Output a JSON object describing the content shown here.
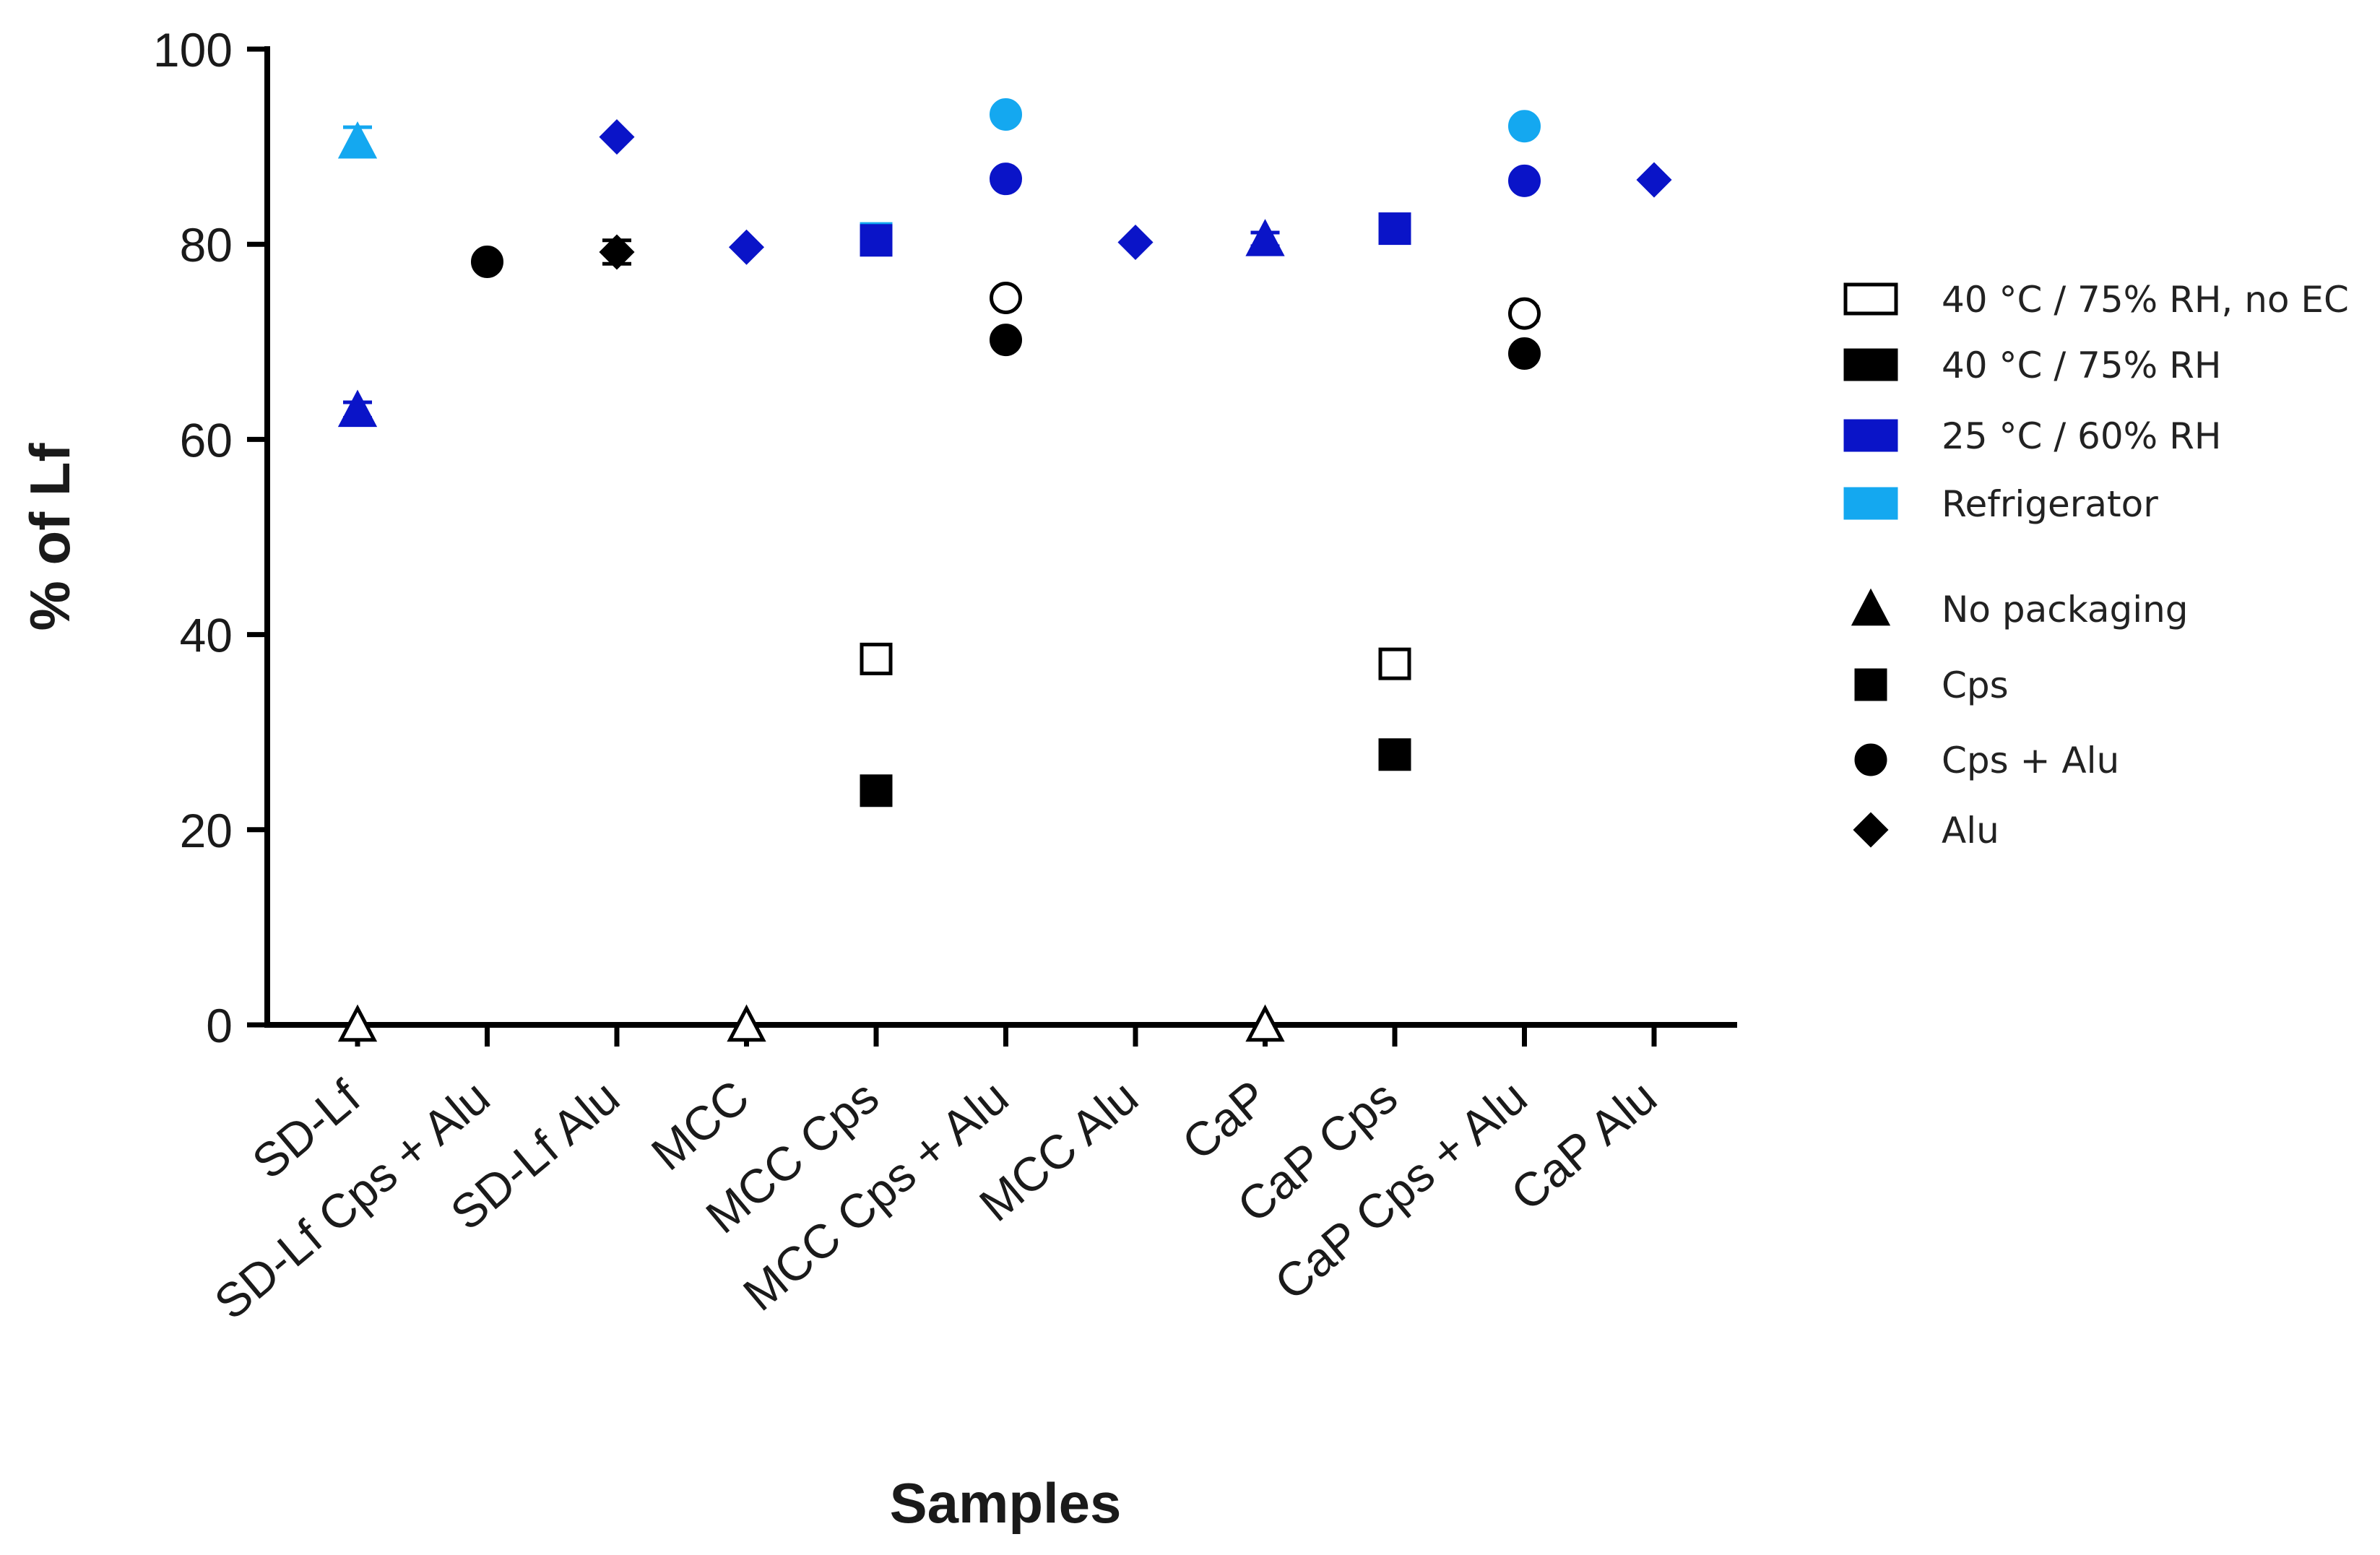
{
  "chart_data": {
    "type": "scatter",
    "title": "",
    "xlabel": "Samples",
    "ylabel": "% of Lf",
    "ylim": [
      0,
      100
    ],
    "yticks": [
      0,
      20,
      40,
      60,
      80,
      100
    ],
    "categories": [
      "SD-Lf",
      "SD-Lf Cps + Alu",
      "SD-Lf Alu",
      "MCC",
      "MCC Cps",
      "MCC Cps + Alu",
      "MCC Alu",
      "CaP",
      "CaP Cps",
      "CaP Cps + Alu",
      "CaP Alu"
    ],
    "conditions": [
      {
        "key": "no_ec",
        "name": "40 °C / 75% RH, no EC",
        "color": "#ffffff",
        "stroke": "#000000"
      },
      {
        "key": "c40",
        "name": "40 °C / 75% RH",
        "color": "#000000",
        "stroke": "#000000"
      },
      {
        "key": "c25",
        "name": "25 °C / 60% RH",
        "color": "#0a14c8",
        "stroke": "#0a14c8"
      },
      {
        "key": "fridge",
        "name": "Refrigerator",
        "color": "#14a8f0",
        "stroke": "#14a8f0"
      }
    ],
    "markers": [
      {
        "shape": "triangle",
        "name": "No packaging"
      },
      {
        "shape": "square",
        "name": "Cps"
      },
      {
        "shape": "circle",
        "name": "Cps + Alu"
      },
      {
        "shape": "diamond",
        "name": "Alu"
      }
    ],
    "points": [
      {
        "category": "SD-Lf",
        "condition": "fridge",
        "shape": "triangle",
        "y": 90.5,
        "err": 1.5
      },
      {
        "category": "SD-Lf",
        "condition": "c25",
        "shape": "triangle",
        "y": 63,
        "err": 0.8
      },
      {
        "category": "SD-Lf",
        "condition": "no_ec",
        "shape": "triangle",
        "y": 0
      },
      {
        "category": "SD-Lf Cps + Alu",
        "condition": "c40",
        "shape": "circle",
        "y": 78.2
      },
      {
        "category": "SD-Lf Alu",
        "condition": "c25",
        "shape": "diamond",
        "y": 91
      },
      {
        "category": "SD-Lf Alu",
        "condition": "c40",
        "shape": "diamond",
        "y": 79.2,
        "err": 1.2
      },
      {
        "category": "MCC",
        "condition": "c25",
        "shape": "diamond",
        "y": 79.7
      },
      {
        "category": "MCC",
        "condition": "no_ec",
        "shape": "triangle",
        "y": 0
      },
      {
        "category": "MCC Cps",
        "condition": "fridge",
        "shape": "square",
        "y": 80.6
      },
      {
        "category": "MCC Cps",
        "condition": "c25",
        "shape": "square",
        "y": 80.4
      },
      {
        "category": "MCC Cps",
        "condition": "no_ec",
        "shape": "square",
        "y": 37.5
      },
      {
        "category": "MCC Cps",
        "condition": "c40",
        "shape": "square",
        "y": 24
      },
      {
        "category": "MCC Cps + Alu",
        "condition": "fridge",
        "shape": "circle",
        "y": 93.3
      },
      {
        "category": "MCC Cps + Alu",
        "condition": "c25",
        "shape": "circle",
        "y": 86.7
      },
      {
        "category": "MCC Cps + Alu",
        "condition": "no_ec",
        "shape": "circle",
        "y": 74.5
      },
      {
        "category": "MCC Cps + Alu",
        "condition": "c40",
        "shape": "circle",
        "y": 70.2
      },
      {
        "category": "MCC Alu",
        "condition": "c25",
        "shape": "diamond",
        "y": 80.2
      },
      {
        "category": "CaP",
        "condition": "c25",
        "shape": "triangle",
        "y": 80.5,
        "err": 0.7
      },
      {
        "category": "CaP",
        "condition": "no_ec",
        "shape": "triangle",
        "y": 0
      },
      {
        "category": "CaP Cps",
        "condition": "c25",
        "shape": "square",
        "y": 81.6
      },
      {
        "category": "CaP Cps",
        "condition": "no_ec",
        "shape": "square",
        "y": 37,
        "err": 0.7
      },
      {
        "category": "CaP Cps",
        "condition": "c40",
        "shape": "square",
        "y": 27.7
      },
      {
        "category": "CaP Cps + Alu",
        "condition": "fridge",
        "shape": "circle",
        "y": 92.1
      },
      {
        "category": "CaP Cps + Alu",
        "condition": "c25",
        "shape": "circle",
        "y": 86.5
      },
      {
        "category": "CaP Cps + Alu",
        "condition": "no_ec",
        "shape": "circle",
        "y": 72.9,
        "err": 0.7
      },
      {
        "category": "CaP Cps + Alu",
        "condition": "c40",
        "shape": "circle",
        "y": 68.8
      },
      {
        "category": "CaP Alu",
        "condition": "c25",
        "shape": "diamond",
        "y": 86.6
      }
    ],
    "legend_position": "right"
  }
}
